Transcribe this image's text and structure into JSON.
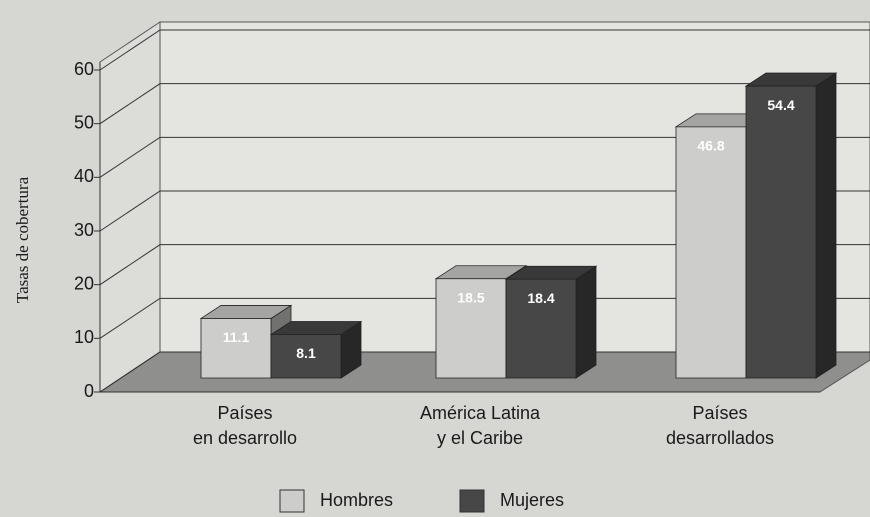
{
  "chart_data": {
    "type": "bar3d",
    "ylabel": "Tasas de cobertura",
    "categories": [
      "Países\nen desarrollo",
      "América Latina\ny el Caribe",
      "Países\ndesarrollados"
    ],
    "series": [
      {
        "name": "Hombres",
        "color": "#cdcdcb",
        "values": [
          11.1,
          18.5,
          46.8
        ]
      },
      {
        "name": "Mujeres",
        "color": "#474747",
        "values": [
          8.1,
          18.4,
          54.4
        ]
      }
    ],
    "ylim": [
      0,
      60
    ],
    "yticks": [
      0,
      10,
      20,
      30,
      40,
      50,
      60
    ],
    "grid": true,
    "legend": "bottom"
  }
}
